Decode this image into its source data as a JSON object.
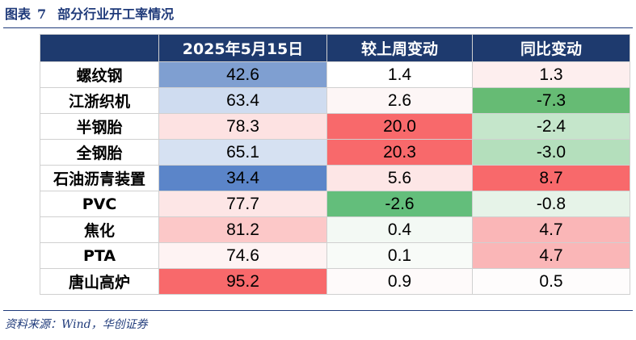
{
  "caption": {
    "figure_label": "图表",
    "figure_number": "7",
    "title": "部分行业开工率情况"
  },
  "table": {
    "headers": [
      "",
      "2025年5月15日",
      "较上周变动",
      "同比变动"
    ],
    "rows": [
      {
        "name": "螺纹钢",
        "values": [
          "42.6",
          "1.4",
          "1.3"
        ],
        "colors": [
          "#7f9fd1",
          "#ffffff",
          "#fdeeee"
        ]
      },
      {
        "name": "江浙织机",
        "values": [
          "63.4",
          "2.6",
          "-7.3"
        ],
        "colors": [
          "#cfdcf0",
          "#fdf6f6",
          "#66bb74"
        ]
      },
      {
        "name": "半钢胎",
        "values": [
          "78.3",
          "20.0",
          "-2.4"
        ],
        "colors": [
          "#fde2e2",
          "#f8696b",
          "#c5e6cb"
        ]
      },
      {
        "name": "全钢胎",
        "values": [
          "65.1",
          "20.3",
          "-3.0"
        ],
        "colors": [
          "#d6e1f2",
          "#f8696b",
          "#b4dfbc"
        ]
      },
      {
        "name": "石油沥青装置",
        "values": [
          "34.4",
          "5.6",
          "8.7"
        ],
        "colors": [
          "#5b85c9",
          "#fde6e6",
          "#f8696b"
        ]
      },
      {
        "name": "PVC",
        "values": [
          "77.7",
          "-2.6",
          "-0.8"
        ],
        "colors": [
          "#fde6e6",
          "#63be7b",
          "#e6f3e8"
        ]
      },
      {
        "name": "焦化",
        "values": [
          "81.2",
          "0.4",
          "4.7"
        ],
        "colors": [
          "#fcc8c8",
          "#f3f9f4",
          "#fab6b7"
        ]
      },
      {
        "name": "PTA",
        "values": [
          "74.6",
          "0.1",
          "4.7"
        ],
        "colors": [
          "#fef3f3",
          "#f8fbf8",
          "#fab6b7"
        ]
      },
      {
        "name": "唐山高炉",
        "values": [
          "95.2",
          "0.9",
          "0.5"
        ],
        "colors": [
          "#f8696b",
          "#fefafa",
          "#fefcfc"
        ]
      }
    ]
  },
  "source_note": "资料来源：Wind，华创证券"
}
